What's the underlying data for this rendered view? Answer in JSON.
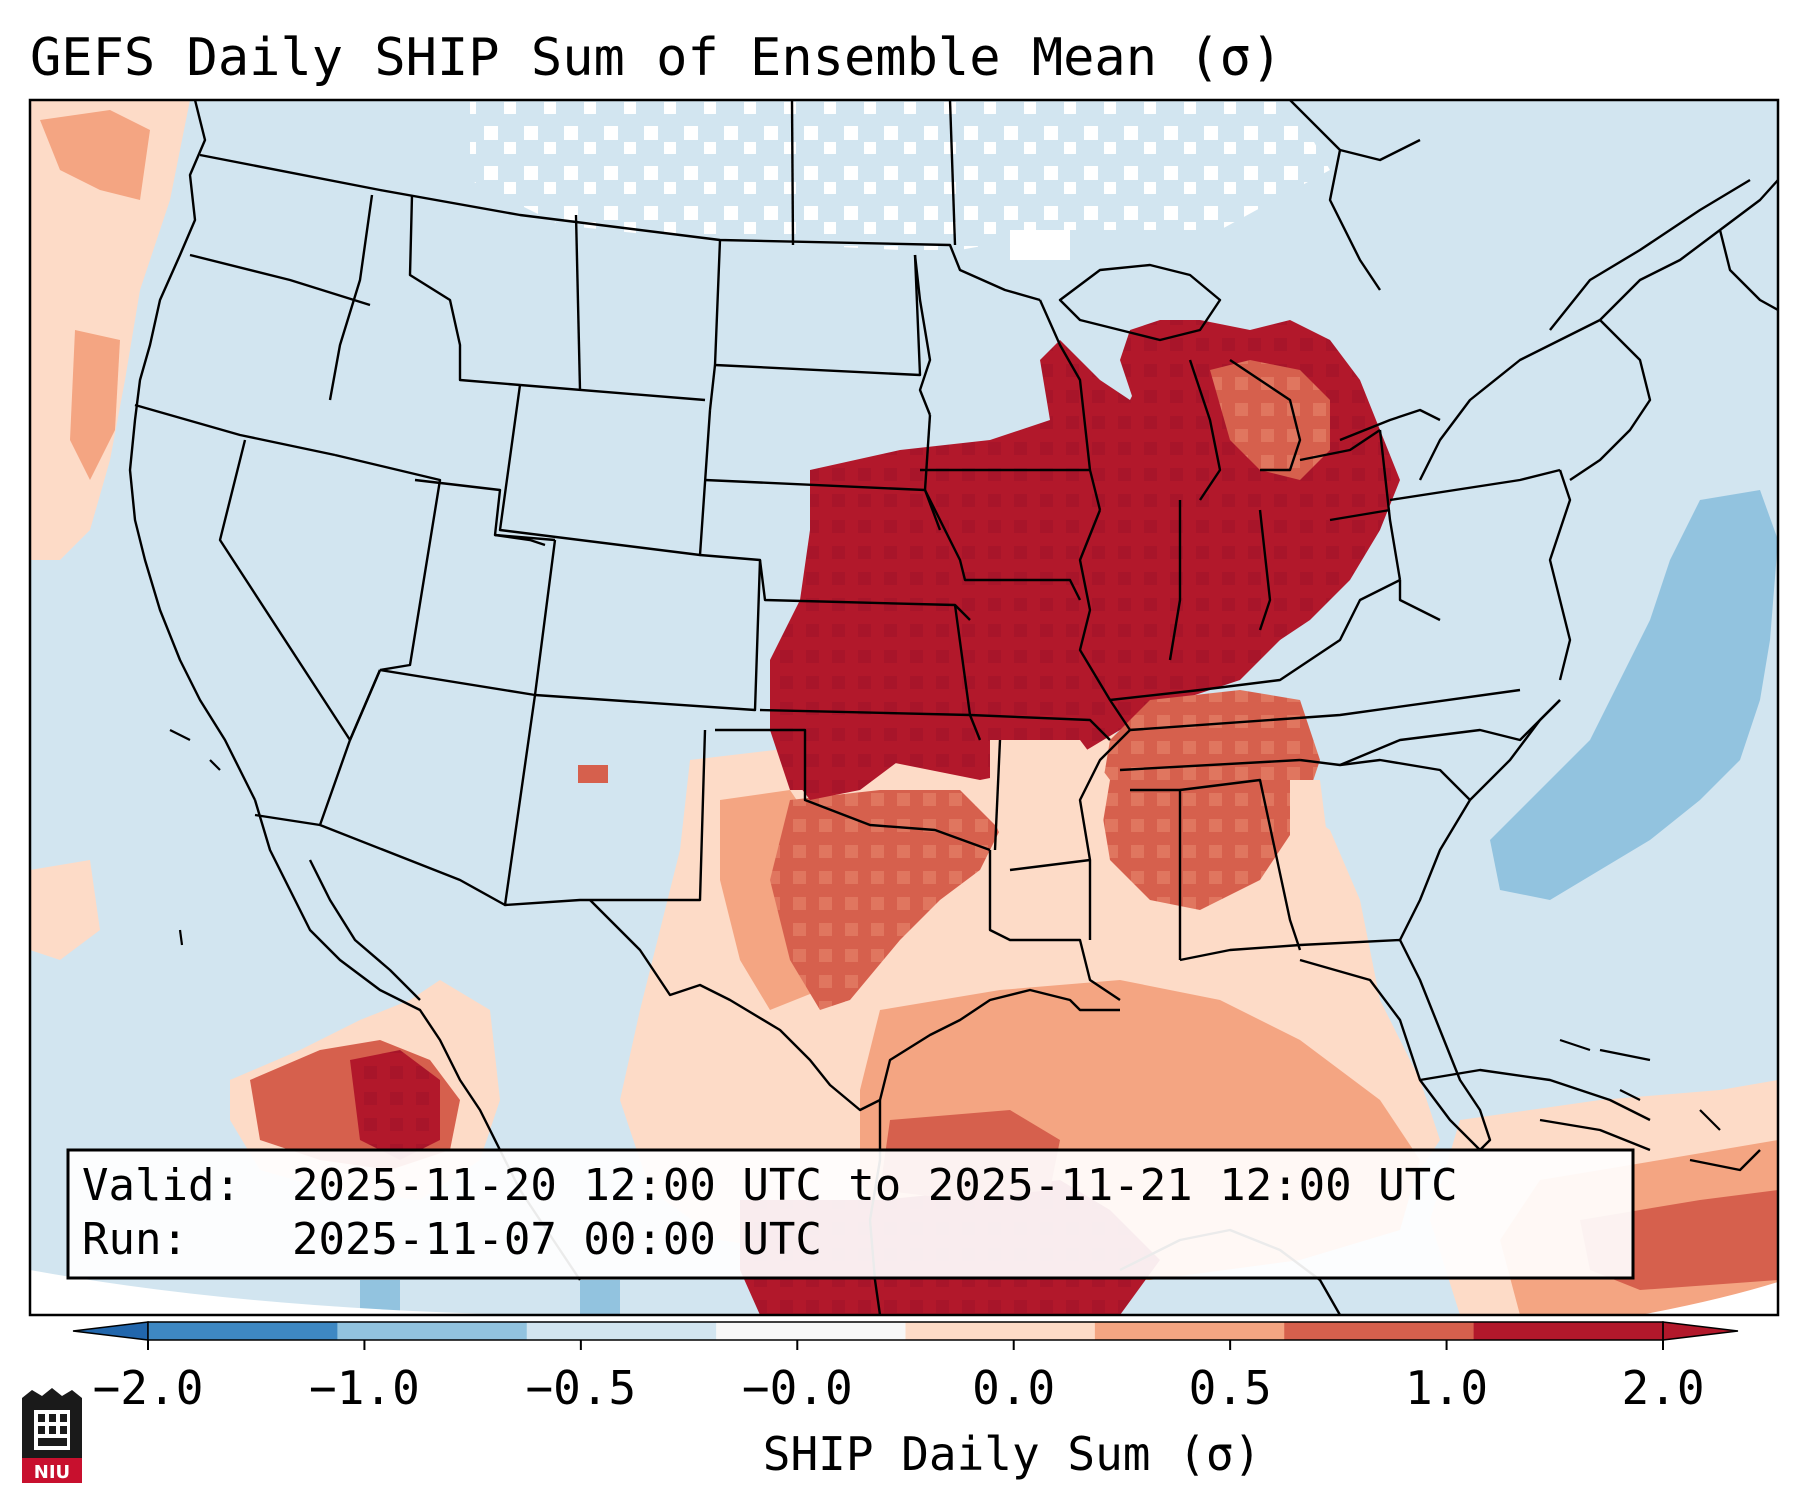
{
  "title": "GEFS Daily SHIP Sum of Ensemble Mean (σ)",
  "info": {
    "valid_label": "Valid:",
    "valid_value": "2025-11-20 12:00 UTC to 2025-11-21 12:00 UTC",
    "run_label": "Run:",
    "run_value": "2025-11-07 00:00 UTC"
  },
  "colorbar": {
    "label": "SHIP Daily Sum (σ)",
    "ticks": [
      "−2.0",
      "−1.0",
      "−0.5",
      "−0.0",
      "0.0",
      "0.5",
      "1.0",
      "2.0"
    ],
    "colors": [
      "#3e88c3",
      "#92c3df",
      "#d2e5f0",
      "#f7f7f7",
      "#fddbc7",
      "#f4a582",
      "#d6604d",
      "#b2182b"
    ],
    "extend_low_color": "#2166ac",
    "extend_high_color": "#b2182b"
  },
  "logo": {
    "text": "NIU"
  }
}
